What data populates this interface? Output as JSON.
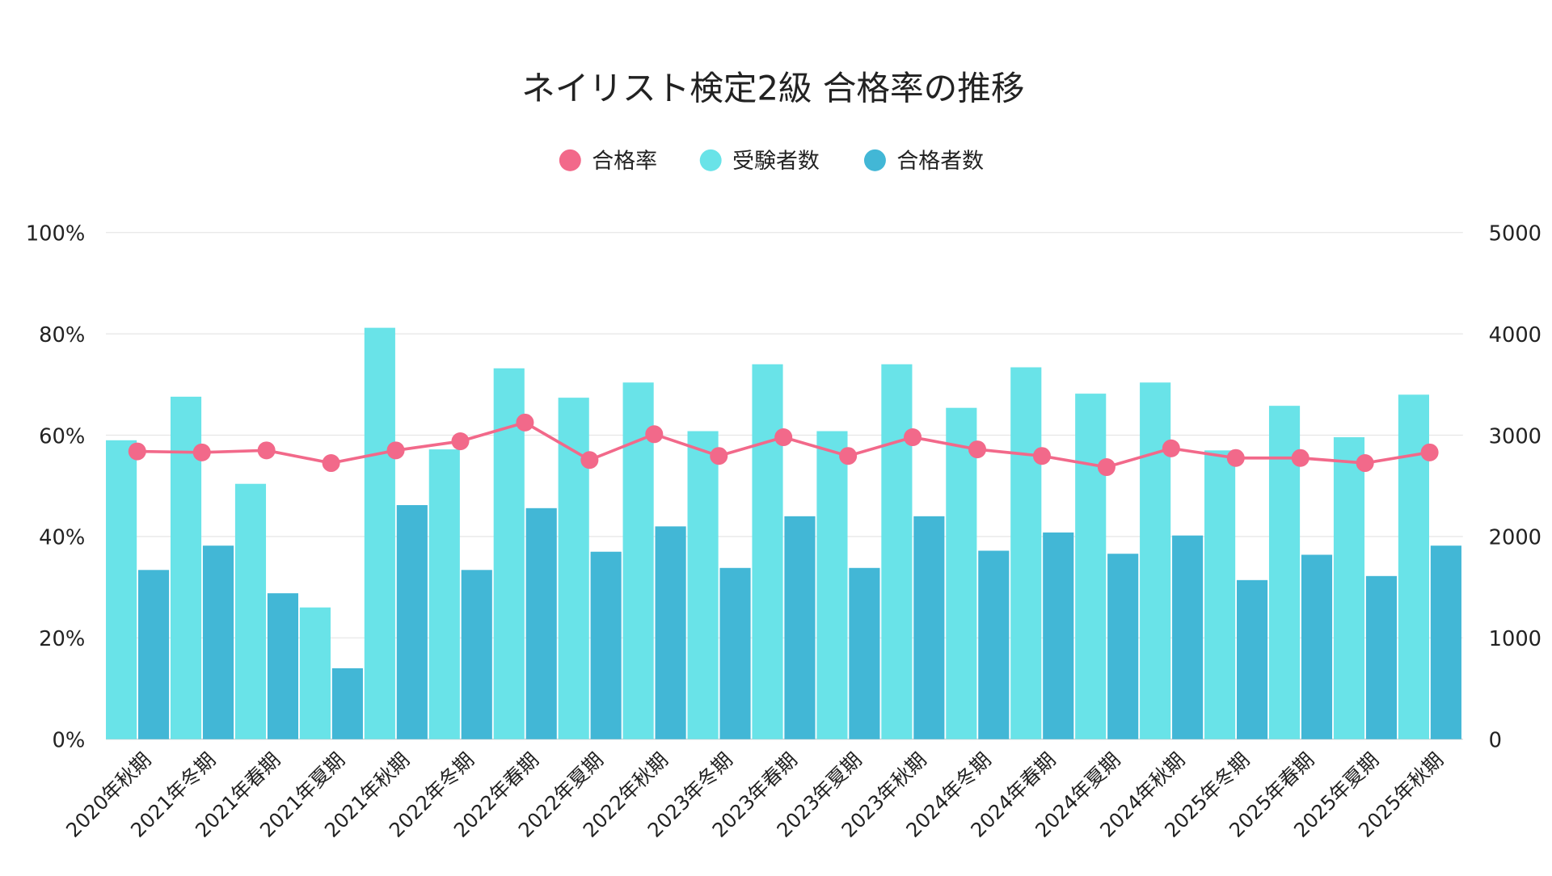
{
  "chart_data": {
    "type": "bar+line",
    "title": "ネイリスト検定2級 合格率の推移",
    "legend_position": "top-center",
    "grid": true,
    "categories": [
      "2020年秋期",
      "2021年冬期",
      "2021年春期",
      "2021年夏期",
      "2021年秋期",
      "2022年冬期",
      "2022年春期",
      "2022年夏期",
      "2022年秋期",
      "2023年冬期",
      "2023年春期",
      "2023年夏期",
      "2023年秋期",
      "2024年冬期",
      "2024年春期",
      "2024年夏期",
      "2024年秋期",
      "2025年冬期",
      "2025年春期",
      "2025年夏期",
      "2025年秋期"
    ],
    "left_axis": {
      "ylim": [
        0,
        100
      ],
      "ticks": [
        "0%",
        "20%",
        "40%",
        "60%",
        "80%",
        "100%"
      ]
    },
    "right_axis": {
      "ylim": [
        0,
        5000
      ],
      "ticks": [
        "0",
        "1000",
        "2000",
        "3000",
        "4000",
        "5000"
      ]
    },
    "series": [
      {
        "name": "合格率",
        "type": "line",
        "axis": "left",
        "color": "#f2698a",
        "values": [
          56.8,
          56.6,
          57.0,
          54.5,
          57.0,
          58.8,
          62.5,
          55.1,
          60.2,
          55.9,
          59.6,
          55.9,
          59.6,
          57.2,
          55.9,
          53.7,
          57.4,
          55.5,
          55.5,
          54.5,
          56.6
        ]
      },
      {
        "name": "受験者数",
        "type": "bar",
        "axis": "right",
        "color": "#69e3e8",
        "values": [
          2950,
          3380,
          2520,
          1300,
          4060,
          2860,
          3660,
          3370,
          3520,
          3040,
          3700,
          3040,
          3700,
          3270,
          3670,
          3410,
          3520,
          2850,
          3290,
          2980,
          3400
        ]
      },
      {
        "name": "合格者数",
        "type": "bar",
        "axis": "right",
        "color": "#42b7d6",
        "values": [
          1670,
          1910,
          1440,
          700,
          2310,
          1670,
          2280,
          1850,
          2100,
          1690,
          2200,
          1690,
          2200,
          1860,
          2040,
          1830,
          2010,
          1570,
          1820,
          1610,
          1910
        ]
      }
    ]
  }
}
